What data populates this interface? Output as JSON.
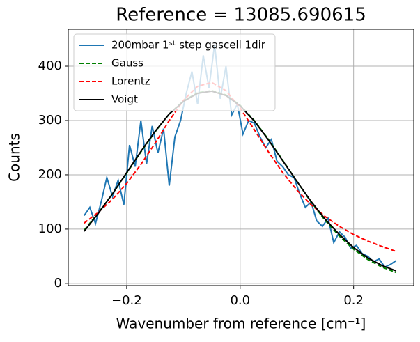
{
  "chart_data": {
    "type": "line",
    "title": "Reference = 13085.690615",
    "x_label": "Wavenumber from reference [cm⁻¹]",
    "y_label": "Counts",
    "xlim": [
      -0.303,
      0.306
    ],
    "ylim": [
      -4,
      468
    ],
    "xticks": [
      {
        "value": -0.2,
        "label": "−0.2"
      },
      {
        "value": 0,
        "label": "0.0"
      },
      0.2
    ],
    "yticks": [
      0,
      100,
      200,
      300,
      400
    ],
    "grid": true,
    "legend": "upper left",
    "series": [
      {
        "name": "200mbar 1ˢᵗ step gascell 1dir",
        "color": "#1f77b4",
        "linestyle": "solid",
        "x": [
          -0.275,
          -0.265,
          -0.255,
          -0.245,
          -0.235,
          -0.225,
          -0.215,
          -0.205,
          -0.195,
          -0.185,
          -0.175,
          -0.165,
          -0.155,
          -0.145,
          -0.135,
          -0.125,
          -0.115,
          -0.105,
          -0.095,
          -0.085,
          -0.075,
          -0.065,
          -0.055,
          -0.045,
          -0.035,
          -0.025,
          -0.015,
          -0.005,
          0.005,
          0.015,
          0.025,
          0.035,
          0.045,
          0.055,
          0.065,
          0.075,
          0.085,
          0.095,
          0.105,
          0.115,
          0.125,
          0.135,
          0.145,
          0.155,
          0.165,
          0.175,
          0.185,
          0.195,
          0.205,
          0.215,
          0.225,
          0.235,
          0.245,
          0.255,
          0.265,
          0.275
        ],
        "values": [
          125,
          140,
          110,
          150,
          195,
          160,
          190,
          145,
          255,
          215,
          300,
          220,
          290,
          240,
          285,
          180,
          270,
          300,
          350,
          390,
          330,
          420,
          360,
          440,
          340,
          400,
          310,
          330,
          275,
          300,
          295,
          270,
          250,
          265,
          225,
          215,
          200,
          195,
          165,
          140,
          150,
          115,
          105,
          120,
          75,
          95,
          85,
          65,
          70,
          55,
          50,
          40,
          45,
          30,
          35,
          42
        ]
      },
      {
        "name": "Gauss",
        "color": "#008000",
        "linestyle": "dashed",
        "x": [
          -0.275,
          -0.25,
          -0.225,
          -0.2,
          -0.175,
          -0.15,
          -0.125,
          -0.1,
          -0.075,
          -0.05,
          -0.025,
          0,
          0.025,
          0.05,
          0.075,
          0.1,
          0.125,
          0.15,
          0.175,
          0.2,
          0.225,
          0.25,
          0.275
        ],
        "values": [
          98,
          130,
          165,
          203,
          242,
          279,
          312,
          336,
          351,
          355,
          347,
          328,
          300,
          265,
          227,
          188,
          150,
          116,
          87,
          63,
          44,
          30,
          20
        ]
      },
      {
        "name": "Lorentz",
        "color": "#ff0000",
        "linestyle": "dashed",
        "x": [
          -0.275,
          -0.25,
          -0.225,
          -0.2,
          -0.175,
          -0.15,
          -0.125,
          -0.1,
          -0.075,
          -0.05,
          -0.025,
          0,
          0.025,
          0.05,
          0.075,
          0.1,
          0.125,
          0.15,
          0.175,
          0.2,
          0.225,
          0.25,
          0.275
        ],
        "values": [
          111,
          131,
          155,
          184,
          219,
          258,
          300,
          337,
          363,
          370,
          355,
          323,
          283,
          242,
          204,
          172,
          145,
          123,
          105,
          90,
          78,
          68,
          59
        ]
      },
      {
        "name": "Voigt",
        "color": "#000000",
        "linestyle": "solid",
        "x": [
          -0.275,
          -0.25,
          -0.225,
          -0.2,
          -0.175,
          -0.15,
          -0.125,
          -0.1,
          -0.075,
          -0.05,
          -0.025,
          0,
          0.025,
          0.05,
          0.075,
          0.1,
          0.125,
          0.15,
          0.175,
          0.2,
          0.225,
          0.25,
          0.275
        ],
        "values": [
          96,
          129,
          165,
          204,
          243,
          280,
          312,
          335,
          350,
          354,
          346,
          327,
          299,
          264,
          226,
          188,
          151,
          118,
          90,
          66,
          47,
          33,
          23
        ]
      }
    ]
  }
}
